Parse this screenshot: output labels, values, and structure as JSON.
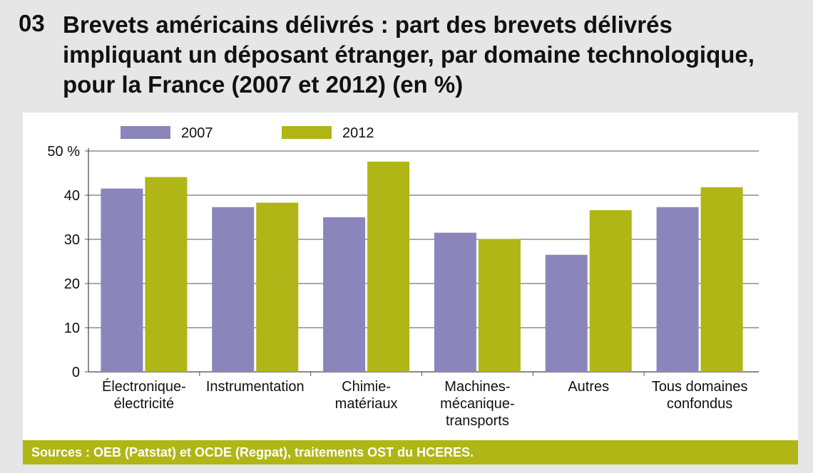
{
  "title": {
    "number": "03",
    "text": "Brevets américains délivrés : part des brevets délivrés impliquant un déposant étranger, par domaine technologique, pour la France (2007 et 2012) (en %)"
  },
  "footer": {
    "source": "Sources : OEB (Patstat) et OCDE (Regpat), traitements OST du HCERES."
  },
  "colors": {
    "series_2007": "#8a86bc",
    "series_2012": "#afb615",
    "footer_bg": "#afb615",
    "page_bg": "#e6e6e6"
  },
  "chart_data": {
    "type": "bar",
    "title": "Brevets américains délivrés : part des brevets délivrés impliquant un déposant étranger, par domaine technologique, pour la France (2007 et 2012) (en %)",
    "categories": [
      [
        "Électronique-",
        "électricité"
      ],
      [
        "Instrumentation"
      ],
      [
        "Chimie-",
        "matériaux"
      ],
      [
        "Machines-",
        "mécanique-",
        "transports"
      ],
      [
        "Autres"
      ],
      [
        "Tous domaines",
        "confondus"
      ]
    ],
    "series": [
      {
        "name": "2007",
        "values": [
          41.5,
          37.3,
          35.0,
          31.5,
          26.5,
          37.3
        ]
      },
      {
        "name": "2012",
        "values": [
          44.1,
          38.3,
          47.6,
          30.1,
          36.6,
          41.8
        ]
      }
    ],
    "ylim": [
      0,
      50
    ],
    "yticks": [
      0,
      10,
      20,
      30,
      40,
      50
    ],
    "ytick_labels": [
      "0",
      "10",
      "20",
      "30",
      "40",
      "50 %"
    ],
    "xlabel": "",
    "ylabel": "",
    "grid": true,
    "legend_position": "top-left"
  }
}
